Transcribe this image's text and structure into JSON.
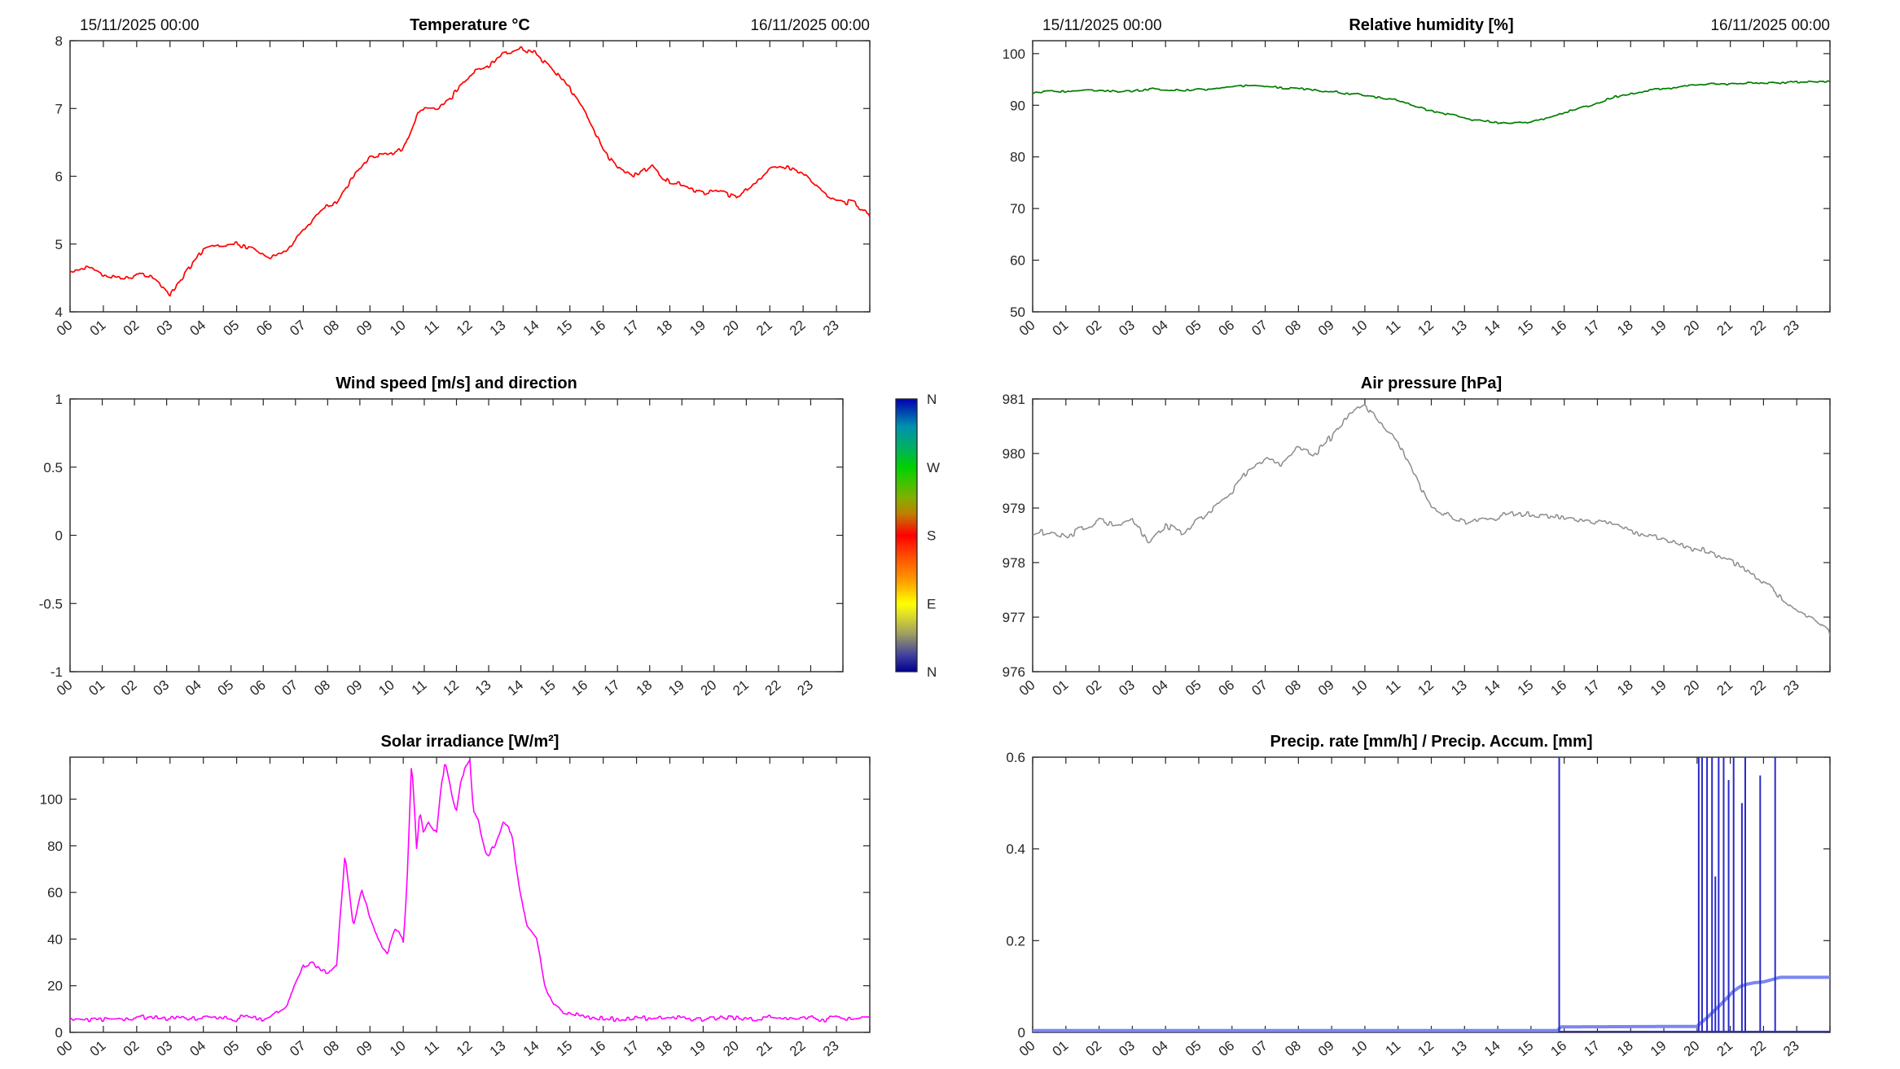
{
  "figure": {
    "background": "#ffffff",
    "axis_color": "#262626",
    "text_color": "#262626"
  },
  "hour_labels": [
    "00",
    "01",
    "02",
    "03",
    "04",
    "05",
    "06",
    "07",
    "08",
    "09",
    "10",
    "11",
    "12",
    "13",
    "14",
    "15",
    "16",
    "17",
    "18",
    "19",
    "20",
    "21",
    "22",
    "23"
  ],
  "chart_data": [
    {
      "id": "temperature",
      "type": "line",
      "title": "Temperature °C",
      "annotations": {
        "top_left": "15/11/2025 00:00",
        "top_right": "16/11/2025 00:00"
      },
      "xlim": [
        0,
        24
      ],
      "ylim": [
        4,
        8
      ],
      "ytick_values": [
        4,
        5,
        6,
        7,
        8
      ],
      "ytick_labels": [
        "4",
        "5",
        "6",
        "7",
        "8"
      ],
      "series": [
        {
          "name": "temperature",
          "color": "#ff0000",
          "width": 1.7,
          "jitter": 0.04,
          "x": [
            0,
            0.5,
            1,
            1.5,
            2,
            2.5,
            3,
            3.5,
            4,
            4.5,
            5,
            5.5,
            6,
            6.5,
            7,
            7.5,
            8,
            8.5,
            9,
            9.5,
            10,
            10.5,
            11,
            11.5,
            12,
            12.5,
            13,
            13.5,
            14,
            14.5,
            15,
            15.5,
            16,
            16.5,
            17,
            17.5,
            18,
            18.5,
            19,
            19.5,
            20,
            20.5,
            21,
            21.5,
            22,
            22.5,
            23,
            23.5,
            24
          ],
          "y": [
            4.6,
            4.65,
            4.55,
            4.5,
            4.55,
            4.5,
            4.25,
            4.6,
            4.9,
            5.0,
            5.0,
            4.95,
            4.8,
            4.9,
            5.2,
            5.5,
            5.6,
            6.0,
            6.3,
            6.3,
            6.4,
            7.0,
            7.0,
            7.2,
            7.5,
            7.6,
            7.8,
            7.9,
            7.8,
            7.6,
            7.3,
            6.9,
            6.4,
            6.1,
            6.0,
            6.15,
            5.9,
            5.85,
            5.75,
            5.8,
            5.7,
            5.9,
            6.1,
            6.15,
            6.05,
            5.8,
            5.65,
            5.6,
            5.45
          ]
        }
      ]
    },
    {
      "id": "humidity",
      "type": "line",
      "title": "Relative humidity [%]",
      "annotations": {
        "top_left": "15/11/2025 00:00",
        "top_right": "16/11/2025 00:00"
      },
      "xlim": [
        0,
        24
      ],
      "ylim": [
        50,
        102.5
      ],
      "ytick_values": [
        50,
        60,
        70,
        80,
        90,
        100
      ],
      "ytick_labels": [
        "50",
        "60",
        "70",
        "80",
        "90",
        "100"
      ],
      "series": [
        {
          "name": "relative-humidity",
          "color": "#007d00",
          "width": 1.7,
          "jitter": 0.22,
          "x": [
            0,
            0.5,
            1,
            1.5,
            2,
            2.5,
            3,
            3.5,
            4,
            4.5,
            5,
            5.5,
            6,
            6.5,
            7,
            7.5,
            8,
            8.5,
            9,
            9.5,
            10,
            10.5,
            11,
            11.5,
            12,
            12.5,
            13,
            13.5,
            14,
            14.5,
            15,
            15.5,
            16,
            16.5,
            17,
            17.5,
            18,
            18.5,
            19,
            19.5,
            20,
            20.5,
            21,
            21.5,
            22,
            22.5,
            23,
            23.5,
            24
          ],
          "y": [
            92.5,
            92.6,
            92.7,
            92.8,
            92.7,
            92.6,
            92.8,
            93.2,
            93.0,
            92.9,
            93.0,
            93.2,
            93.5,
            93.7,
            93.6,
            93.4,
            93.2,
            92.9,
            92.6,
            92.3,
            92.0,
            91.5,
            91.0,
            89.8,
            89.0,
            88.2,
            87.6,
            87.0,
            86.7,
            86.5,
            86.8,
            87.5,
            88.5,
            89.5,
            90.5,
            91.5,
            92.3,
            92.8,
            93.2,
            93.6,
            93.9,
            94.1,
            94.2,
            94.3,
            94.2,
            94.3,
            94.4,
            94.4,
            94.5
          ]
        }
      ]
    },
    {
      "id": "wind",
      "type": "line",
      "title": "Wind speed [m/s] and direction",
      "xlim": [
        0,
        24
      ],
      "ylim": [
        -1,
        1
      ],
      "ytick_values": [
        -1,
        -0.5,
        0,
        0.5,
        1
      ],
      "ytick_labels": [
        "-1",
        "-0.5",
        "0",
        "0.5",
        "1"
      ],
      "series": [],
      "colorbar": {
        "labels": [
          "N",
          "W",
          "S",
          "E",
          "N"
        ],
        "positions": [
          1,
          0.75,
          0.5,
          0.25,
          0
        ],
        "gradient": [
          [
            "0%",
            "#00008f"
          ],
          [
            "6%",
            "#4040a0"
          ],
          [
            "14%",
            "#a0a060"
          ],
          [
            "22%",
            "#e8e820"
          ],
          [
            "25%",
            "#ffff00"
          ],
          [
            "33%",
            "#ffa000"
          ],
          [
            "42%",
            "#ff5000"
          ],
          [
            "50%",
            "#ff0000"
          ],
          [
            "58%",
            "#c08000"
          ],
          [
            "64%",
            "#80b000"
          ],
          [
            "72%",
            "#20cc00"
          ],
          [
            "75%",
            "#00d000"
          ],
          [
            "82%",
            "#00b060"
          ],
          [
            "90%",
            "#0090b0"
          ],
          [
            "100%",
            "#0000b0"
          ]
        ]
      }
    },
    {
      "id": "pressure",
      "type": "line",
      "title": "Air pressure [hPa]",
      "xlim": [
        0,
        24
      ],
      "ylim": [
        976,
        981
      ],
      "ytick_values": [
        976,
        977,
        978,
        979,
        980,
        981
      ],
      "ytick_labels": [
        "976",
        "977",
        "978",
        "979",
        "980",
        "981"
      ],
      "series": [
        {
          "name": "air-pressure",
          "color": "#8c8c8c",
          "width": 1.5,
          "jitter": 0.06,
          "x": [
            0,
            0.5,
            1,
            1.5,
            2,
            2.5,
            3,
            3.5,
            4,
            4.5,
            5,
            5.5,
            6,
            6.5,
            7,
            7.5,
            8,
            8.5,
            9,
            9.5,
            10,
            10.5,
            11,
            11.5,
            12,
            12.5,
            13,
            13.5,
            14,
            14.5,
            15,
            15.5,
            16,
            16.5,
            17,
            17.5,
            18,
            18.5,
            19,
            19.5,
            20,
            20.5,
            21,
            21.5,
            22,
            22.5,
            23,
            23.5,
            24
          ],
          "y": [
            978.5,
            978.6,
            978.5,
            978.6,
            978.75,
            978.7,
            978.8,
            978.35,
            978.7,
            978.5,
            978.8,
            979.0,
            979.3,
            979.7,
            979.9,
            979.8,
            980.1,
            980.0,
            980.3,
            980.7,
            980.9,
            980.5,
            980.2,
            979.6,
            979.0,
            978.85,
            978.7,
            978.8,
            978.85,
            978.9,
            978.9,
            978.85,
            978.8,
            978.8,
            978.75,
            978.7,
            978.6,
            978.5,
            978.45,
            978.35,
            978.25,
            978.15,
            978.0,
            977.85,
            977.65,
            977.4,
            977.1,
            977.0,
            976.7
          ]
        }
      ]
    },
    {
      "id": "solar",
      "type": "line",
      "title": "Solar irradiance [W/m²]",
      "xlim": [
        0,
        24
      ],
      "ylim": [
        0,
        118
      ],
      "ytick_values": [
        0,
        20,
        40,
        60,
        80,
        100
      ],
      "ytick_labels": [
        "0",
        "20",
        "40",
        "60",
        "80",
        "100"
      ],
      "series": [
        {
          "name": "solar-irradiance",
          "color": "#ff00ff",
          "width": 1.6,
          "jitter": 1.2,
          "x": [
            0,
            1,
            2,
            3,
            4,
            5,
            5.75,
            6,
            6.25,
            6.5,
            6.75,
            7,
            7.25,
            7.5,
            7.75,
            8,
            8.25,
            8.5,
            8.75,
            9,
            9.25,
            9.5,
            9.75,
            10,
            10.1,
            10.25,
            10.4,
            10.5,
            10.6,
            10.75,
            11,
            11.1,
            11.25,
            11.5,
            11.6,
            11.75,
            12,
            12.1,
            12.25,
            12.5,
            12.75,
            13,
            13.25,
            13.5,
            13.75,
            14,
            14.25,
            14.5,
            14.75,
            15,
            15.5,
            16,
            17,
            18,
            19,
            20,
            21,
            22,
            23,
            24
          ],
          "y": [
            6,
            6,
            6,
            6,
            6,
            6,
            6,
            7,
            9,
            12,
            20,
            28,
            30,
            26,
            25,
            30,
            77,
            45,
            62,
            50,
            40,
            34,
            44,
            40,
            60,
            117,
            80,
            95,
            85,
            90,
            85,
            100,
            117,
            100,
            95,
            110,
            117,
            95,
            90,
            75,
            80,
            90,
            85,
            60,
            45,
            40,
            20,
            12,
            9,
            8,
            6,
            6,
            6,
            6,
            6,
            6,
            6,
            6,
            6,
            6
          ]
        }
      ]
    },
    {
      "id": "precip",
      "type": "line",
      "title": "Precip. rate [mm/h] / Precip. Accum. [mm]",
      "xlim": [
        0,
        24
      ],
      "ylim": [
        0,
        0.6
      ],
      "ytick_values": [
        0,
        0.2,
        0.4,
        0.6
      ],
      "ytick_labels": [
        "0",
        "0.2",
        "0.4",
        "0.6"
      ],
      "series": [
        {
          "name": "precip-rate-baseline",
          "color": "#2a2ac8",
          "width": 1.6,
          "jitter": 0,
          "x": [
            0,
            24
          ],
          "y": [
            0.002,
            0.002
          ]
        },
        {
          "name": "precip-accumulation",
          "color": "#7b86f2",
          "width": 4,
          "jitter": 0,
          "x": [
            0,
            15.8,
            15.9,
            20.0,
            20.1,
            20.3,
            20.5,
            20.7,
            20.9,
            21.1,
            21.3,
            21.5,
            21.7,
            22.0,
            22.3,
            22.5,
            24
          ],
          "y": [
            0.004,
            0.004,
            0.012,
            0.013,
            0.02,
            0.032,
            0.046,
            0.06,
            0.075,
            0.09,
            0.1,
            0.105,
            0.108,
            0.11,
            0.116,
            0.12,
            0.12
          ]
        }
      ],
      "spikes": {
        "name": "precip-rate-spikes",
        "color": "#2a2ac8",
        "width": 2,
        "points": [
          [
            15.85,
            0.6
          ],
          [
            20.05,
            0.6
          ],
          [
            20.15,
            0.6
          ],
          [
            20.3,
            0.6
          ],
          [
            20.45,
            0.6
          ],
          [
            20.55,
            0.34
          ],
          [
            20.65,
            0.6
          ],
          [
            20.8,
            0.6
          ],
          [
            20.95,
            0.55
          ],
          [
            21.1,
            0.6
          ],
          [
            21.35,
            0.5
          ],
          [
            21.45,
            0.6
          ],
          [
            21.9,
            0.56
          ],
          [
            22.35,
            0.6
          ]
        ]
      }
    }
  ]
}
